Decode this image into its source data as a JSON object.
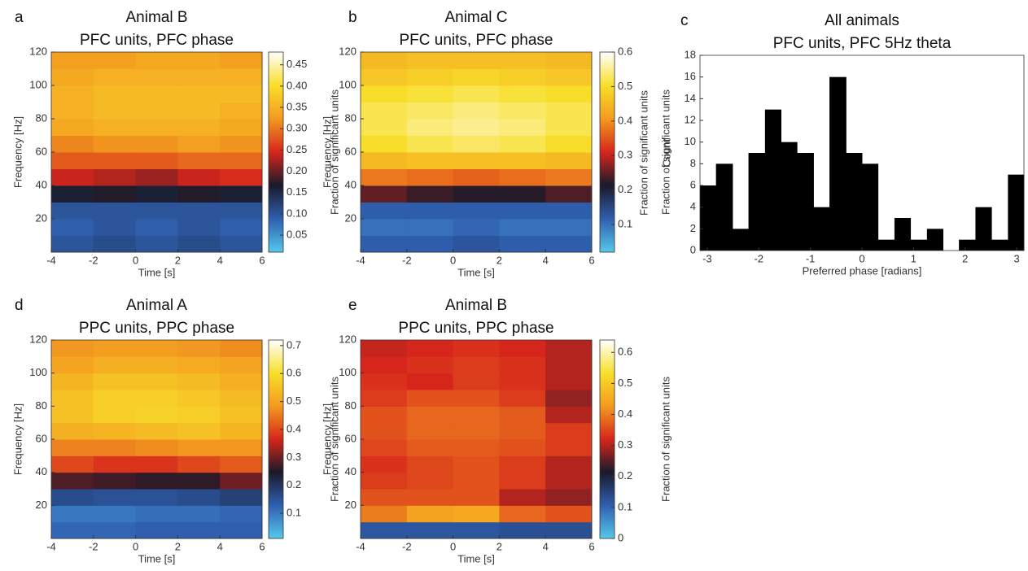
{
  "chart_data": [
    {
      "type": "heatmap",
      "panel": "a",
      "title": "Animal B",
      "subtitle": "PFC units, PFC phase",
      "xlabel": "Time [s]",
      "ylabel": "Frequency [Hz]",
      "colorbar_label": "Fraction of significant units",
      "xlim": [
        -4,
        6
      ],
      "xticks": [
        -4,
        -2,
        0,
        2,
        4,
        6
      ],
      "ylim": [
        0,
        120
      ],
      "yticks": [
        20,
        40,
        60,
        80,
        100,
        120
      ],
      "xbins": [
        -4,
        -2,
        0,
        2,
        4,
        6
      ],
      "ybins": [
        0,
        10,
        20,
        30,
        40,
        50,
        60,
        70,
        80,
        90,
        100,
        110,
        120
      ],
      "clim": [
        0.01,
        0.48
      ],
      "cticks": [
        0.05,
        {
          "value": 0.1,
          "label": "0.10"
        },
        0.15,
        {
          "value": 0.2,
          "label": "0.20"
        },
        0.25,
        {
          "value": 0.3,
          "label": "0.30"
        },
        0.35,
        {
          "value": 0.4,
          "label": "0.40"
        },
        0.45
      ],
      "colormap": [
        "#55c8ea",
        "#2f5fb0",
        "#1a1a2a",
        "#d6261b",
        "#f39a1f",
        "#f8df2a",
        "#ffffff"
      ],
      "z": [
        [
          0.1,
          0.11,
          0.1,
          0.11,
          0.1
        ],
        [
          0.09,
          0.1,
          0.09,
          0.1,
          0.09
        ],
        [
          0.1,
          0.1,
          0.1,
          0.1,
          0.1
        ],
        [
          0.16,
          0.17,
          0.16,
          0.17,
          0.16
        ],
        [
          0.24,
          0.23,
          0.22,
          0.24,
          0.25
        ],
        [
          0.28,
          0.28,
          0.28,
          0.29,
          0.29
        ],
        [
          0.31,
          0.32,
          0.32,
          0.33,
          0.32
        ],
        [
          0.34,
          0.35,
          0.35,
          0.35,
          0.34
        ],
        [
          0.35,
          0.36,
          0.36,
          0.36,
          0.35
        ],
        [
          0.35,
          0.36,
          0.36,
          0.36,
          0.36
        ],
        [
          0.34,
          0.35,
          0.35,
          0.35,
          0.35
        ],
        [
          0.33,
          0.33,
          0.34,
          0.34,
          0.33
        ]
      ]
    },
    {
      "type": "heatmap",
      "panel": "b",
      "title": "Animal C",
      "subtitle": "PFC units, PFC phase",
      "xlabel": "Time [s]",
      "ylabel": "Frequency [Hz]",
      "colorbar_label": "Fraction of significant units",
      "xlim": [
        -4,
        6
      ],
      "xticks": [
        -4,
        -2,
        0,
        2,
        4,
        6
      ],
      "ylim": [
        0,
        120
      ],
      "yticks": [
        20,
        40,
        60,
        80,
        100,
        120
      ],
      "xbins": [
        -4,
        -2,
        0,
        2,
        4,
        6
      ],
      "ybins": [
        0,
        10,
        20,
        30,
        40,
        50,
        60,
        70,
        80,
        90,
        100,
        110,
        120
      ],
      "clim": [
        0.02,
        0.6
      ],
      "cticks": [
        0.1,
        0.2,
        0.3,
        0.4,
        0.5,
        0.6
      ],
      "colormap": [
        "#55c8ea",
        "#2f5fb0",
        "#1a1a2a",
        "#d6261b",
        "#f39a1f",
        "#f8df2a",
        "#ffffff"
      ],
      "z": [
        [
          0.12,
          0.12,
          0.13,
          0.12,
          0.12
        ],
        [
          0.1,
          0.1,
          0.11,
          0.1,
          0.1
        ],
        [
          0.12,
          0.12,
          0.12,
          0.12,
          0.12
        ],
        [
          0.25,
          0.23,
          0.22,
          0.22,
          0.24
        ],
        [
          0.38,
          0.37,
          0.36,
          0.37,
          0.38
        ],
        [
          0.45,
          0.46,
          0.46,
          0.46,
          0.45
        ],
        [
          0.5,
          0.52,
          0.53,
          0.52,
          0.5
        ],
        [
          0.52,
          0.54,
          0.55,
          0.54,
          0.52
        ],
        [
          0.52,
          0.53,
          0.54,
          0.53,
          0.52
        ],
        [
          0.5,
          0.51,
          0.52,
          0.51,
          0.5
        ],
        [
          0.47,
          0.48,
          0.49,
          0.48,
          0.47
        ],
        [
          0.45,
          0.46,
          0.46,
          0.46,
          0.45
        ]
      ]
    },
    {
      "type": "histogram",
      "panel": "c",
      "title": "All animals",
      "subtitle": "PFC units, PFC 5Hz theta",
      "xlabel": "Preferred phase [radians]",
      "ylabel": "Count",
      "outer_label": "Fraction of significant units",
      "color": "#000000",
      "xlim": [
        -3.14,
        3.14
      ],
      "xticks": [
        -3,
        -2,
        -1,
        0,
        1,
        2,
        3
      ],
      "ylim": [
        0,
        18
      ],
      "yticks": [
        0,
        2,
        4,
        6,
        8,
        10,
        12,
        14,
        16,
        18
      ],
      "bins": [
        -3.14,
        -2.83,
        -2.51,
        -2.2,
        -1.88,
        -1.57,
        -1.26,
        -0.94,
        -0.63,
        -0.31,
        0,
        0.31,
        0.63,
        0.94,
        1.26,
        1.57,
        1.88,
        2.2,
        2.51,
        2.83,
        3.14
      ],
      "values": [
        6,
        8,
        2,
        9,
        13,
        10,
        9,
        4,
        16,
        9,
        8,
        1,
        3,
        1,
        2,
        0,
        1,
        4,
        1,
        7
      ]
    },
    {
      "type": "heatmap",
      "panel": "d",
      "title": "Animal A",
      "subtitle": "PPC units, PPC phase",
      "xlabel": "Time [s]",
      "ylabel": "Frequency [Hz]",
      "colorbar_label": "Fraction of significant units",
      "xlim": [
        -4,
        6
      ],
      "xticks": [
        -4,
        -2,
        0,
        2,
        4,
        6
      ],
      "ylim": [
        0,
        120
      ],
      "yticks": [
        20,
        40,
        60,
        80,
        100,
        120
      ],
      "xbins": [
        -4,
        -2,
        0,
        2,
        4,
        6
      ],
      "ybins": [
        0,
        10,
        20,
        30,
        40,
        50,
        60,
        70,
        80,
        90,
        100,
        110,
        120
      ],
      "clim": [
        0.01,
        0.72
      ],
      "cticks": [
        0.1,
        0.2,
        0.3,
        0.4,
        0.5,
        0.6,
        0.7
      ],
      "colormap": [
        "#55c8ea",
        "#2f5fb0",
        "#1a1a2a",
        "#d6261b",
        "#f39a1f",
        "#f8df2a",
        "#ffffff"
      ],
      "z": [
        [
          0.12,
          0.12,
          0.13,
          0.13,
          0.13
        ],
        [
          0.1,
          0.1,
          0.11,
          0.11,
          0.12
        ],
        [
          0.16,
          0.15,
          0.15,
          0.16,
          0.18
        ],
        [
          0.28,
          0.27,
          0.26,
          0.26,
          0.3
        ],
        [
          0.4,
          0.38,
          0.38,
          0.4,
          0.42
        ],
        [
          0.46,
          0.46,
          0.47,
          0.48,
          0.48
        ],
        [
          0.52,
          0.53,
          0.54,
          0.55,
          0.53
        ],
        [
          0.55,
          0.57,
          0.58,
          0.57,
          0.55
        ],
        [
          0.55,
          0.57,
          0.57,
          0.56,
          0.54
        ],
        [
          0.53,
          0.55,
          0.55,
          0.54,
          0.52
        ],
        [
          0.5,
          0.52,
          0.52,
          0.51,
          0.5
        ],
        [
          0.48,
          0.49,
          0.49,
          0.48,
          0.47
        ]
      ]
    },
    {
      "type": "heatmap",
      "panel": "e",
      "title": "Animal B",
      "subtitle": "PPC units, PPC phase",
      "xlabel": "Time [s]",
      "ylabel": "Frequency [Hz]",
      "colorbar_label": "Fraction of significant units",
      "xlim": [
        -4,
        6
      ],
      "xticks": [
        -4,
        -2,
        0,
        2,
        4,
        6
      ],
      "ylim": [
        0,
        120
      ],
      "yticks": [
        20,
        40,
        60,
        80,
        100,
        120
      ],
      "xbins": [
        -4,
        -2,
        0,
        2,
        4,
        6
      ],
      "ybins": [
        0,
        10,
        20,
        30,
        40,
        50,
        60,
        70,
        80,
        90,
        100,
        110,
        120
      ],
      "clim": [
        0,
        0.64
      ],
      "cticks": [
        0,
        0.1,
        0.2,
        0.3,
        0.4,
        0.5,
        0.6
      ],
      "colormap": [
        "#55c8ea",
        "#2f5fb0",
        "#1a1a2a",
        "#d6261b",
        "#f39a1f",
        "#f8df2a",
        "#ffffff"
      ],
      "z": [
        [
          0.12,
          0.12,
          0.12,
          0.13,
          0.13
        ],
        [
          0.4,
          0.44,
          0.45,
          0.38,
          0.36
        ],
        [
          0.36,
          0.36,
          0.36,
          0.3,
          0.28
        ],
        [
          0.34,
          0.35,
          0.36,
          0.34,
          0.3
        ],
        [
          0.33,
          0.35,
          0.36,
          0.34,
          0.3
        ],
        [
          0.35,
          0.37,
          0.37,
          0.36,
          0.34
        ],
        [
          0.36,
          0.38,
          0.38,
          0.37,
          0.34
        ],
        [
          0.36,
          0.38,
          0.38,
          0.37,
          0.3
        ],
        [
          0.34,
          0.36,
          0.36,
          0.34,
          0.28
        ],
        [
          0.33,
          0.32,
          0.34,
          0.33,
          0.3
        ],
        [
          0.32,
          0.33,
          0.34,
          0.33,
          0.3
        ],
        [
          0.31,
          0.32,
          0.33,
          0.32,
          0.3
        ]
      ]
    }
  ]
}
